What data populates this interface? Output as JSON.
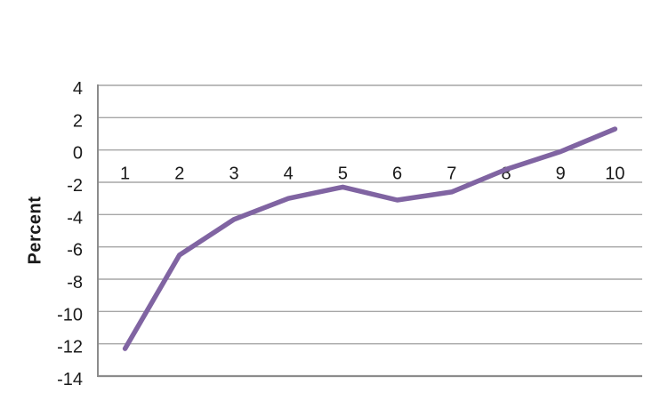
{
  "chart_data": {
    "type": "line",
    "title": "",
    "ylabel": "Percent",
    "xlabel": "",
    "categories": [
      "1",
      "2",
      "3",
      "4",
      "5",
      "6",
      "7",
      "8",
      "9",
      "10"
    ],
    "series": [
      {
        "name": "Percent",
        "color": "#8064A2",
        "values": [
          -12.3,
          -6.5,
          -4.3,
          -3.0,
          -2.3,
          -3.1,
          -2.6,
          -1.2,
          -0.1,
          1.3
        ]
      }
    ],
    "ylim": [
      -14,
      4
    ],
    "yticks": [
      4,
      2,
      0,
      -2,
      -4,
      -6,
      -8,
      -10,
      -12,
      -14
    ],
    "grid": "horizontal-only",
    "legend": "none",
    "markers": "none",
    "x_label_position": "below-zero-line",
    "colors": {
      "line": "#8064A2",
      "gridline": "#A6A6A6",
      "axis": "#8C8C8C",
      "text": "#1a1a1a",
      "background": "#ffffff"
    }
  }
}
